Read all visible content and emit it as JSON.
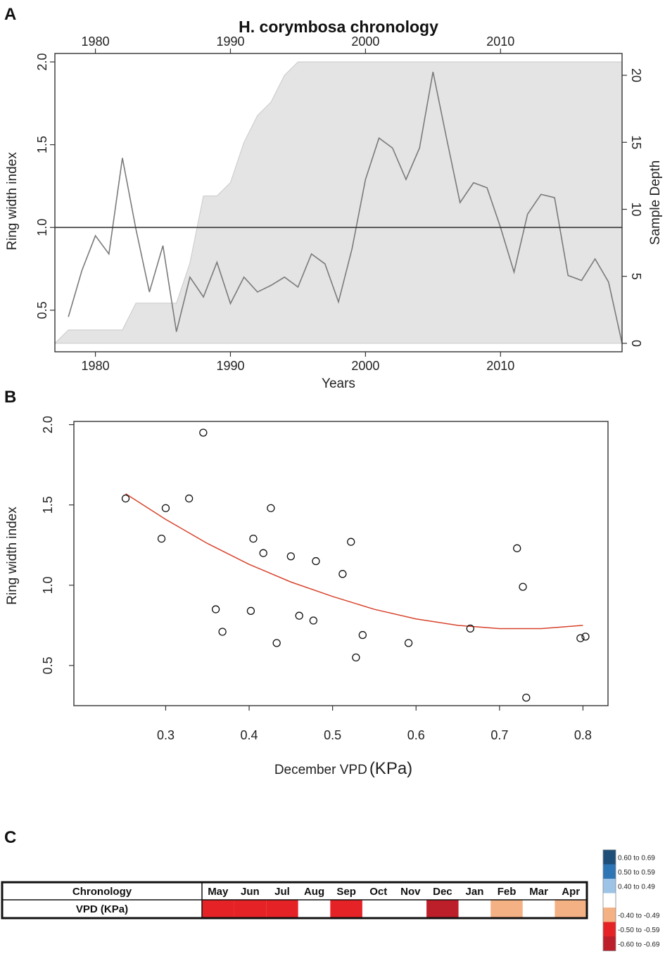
{
  "panels": {
    "a": "A",
    "b": "B",
    "c": "C"
  },
  "colors": {
    "deep_red": "#bd1f2a",
    "red": "#e52226",
    "salmon": "#f4b183",
    "light_blue": "#9dc3e6",
    "mid_blue": "#2e75b6",
    "dark_blue": "#1f4e79",
    "fit_line": "#d7432c",
    "shade": "#e4e4e4",
    "series": "#7a7a7a"
  },
  "chart_data": [
    {
      "type": "line",
      "title": "H. corymbosa chronology",
      "xlabel": "Years",
      "ylabel": "Ring width index",
      "y2label": "Sample Depth",
      "xlim": [
        1977,
        2019
      ],
      "ylim": [
        0.3,
        2.0
      ],
      "y2lim": [
        0,
        21
      ],
      "xticks": [
        1980,
        1990,
        2000,
        2010
      ],
      "yticks": [
        0.5,
        1.0,
        1.5,
        2.0
      ],
      "ytick_labels": [
        "0.5",
        "1.0",
        "1.5",
        "2.0"
      ],
      "y2ticks": [
        0,
        5,
        10,
        15,
        20
      ],
      "reference_line": 1.0,
      "series": [
        {
          "name": "Ring width index",
          "x": [
            1978,
            1979,
            1980,
            1981,
            1982,
            1983,
            1984,
            1985,
            1986,
            1987,
            1988,
            1989,
            1990,
            1991,
            1992,
            1993,
            1994,
            1995,
            1996,
            1997,
            1998,
            1999,
            2000,
            2001,
            2002,
            2003,
            2004,
            2005,
            2006,
            2007,
            2008,
            2009,
            2010,
            2011,
            2012,
            2013,
            2014,
            2015,
            2016,
            2017,
            2018,
            2019
          ],
          "values": [
            0.46,
            0.74,
            0.95,
            0.84,
            1.42,
            0.99,
            0.61,
            0.89,
            0.37,
            0.7,
            0.58,
            0.79,
            0.54,
            0.7,
            0.61,
            0.65,
            0.7,
            0.64,
            0.84,
            0.78,
            0.55,
            0.87,
            1.29,
            1.54,
            1.48,
            1.29,
            1.48,
            1.94,
            1.54,
            1.15,
            1.27,
            1.24,
            1.0,
            0.73,
            1.08,
            1.2,
            1.18,
            0.71,
            0.68,
            0.81,
            0.67,
            0.3
          ]
        },
        {
          "name": "Sample Depth",
          "x": [
            1977,
            1978,
            1979,
            1980,
            1981,
            1982,
            1983,
            1984,
            1985,
            1986,
            1987,
            1988,
            1989,
            1990,
            1991,
            1992,
            1993,
            1994,
            1995,
            1996,
            2019
          ],
          "values": [
            0,
            1,
            1,
            1,
            1,
            1,
            3,
            3,
            3,
            3,
            6,
            11,
            11,
            12,
            15,
            17,
            18,
            20,
            21,
            21,
            21
          ]
        }
      ]
    },
    {
      "type": "scatter",
      "xlabel": "December VPD",
      "xlabel_unit": "(KPa)",
      "ylabel": "Ring width index",
      "xlim": [
        0.19,
        0.83
      ],
      "ylim": [
        0.25,
        2.02
      ],
      "xticks": [
        0.3,
        0.4,
        0.5,
        0.6,
        0.7,
        0.8
      ],
      "xtick_labels": [
        "0.3",
        "0.4",
        "0.5",
        "0.6",
        "0.7",
        "0.8"
      ],
      "yticks": [
        0.5,
        1.0,
        1.5,
        2.0
      ],
      "ytick_labels": [
        "0.5",
        "1.0",
        "1.5",
        "2.0"
      ],
      "points": [
        [
          0.252,
          1.54
        ],
        [
          0.295,
          1.29
        ],
        [
          0.3,
          1.48
        ],
        [
          0.328,
          1.54
        ],
        [
          0.345,
          1.95
        ],
        [
          0.36,
          0.85
        ],
        [
          0.368,
          0.71
        ],
        [
          0.402,
          0.84
        ],
        [
          0.405,
          1.29
        ],
        [
          0.417,
          1.2
        ],
        [
          0.426,
          1.48
        ],
        [
          0.433,
          0.64
        ],
        [
          0.45,
          1.18
        ],
        [
          0.46,
          0.81
        ],
        [
          0.477,
          0.78
        ],
        [
          0.48,
          1.15
        ],
        [
          0.512,
          1.07
        ],
        [
          0.522,
          1.27
        ],
        [
          0.528,
          0.55
        ],
        [
          0.536,
          0.69
        ],
        [
          0.591,
          0.64
        ],
        [
          0.665,
          0.73
        ],
        [
          0.721,
          1.23
        ],
        [
          0.728,
          0.99
        ],
        [
          0.732,
          0.3
        ],
        [
          0.797,
          0.67
        ],
        [
          0.803,
          0.68
        ]
      ],
      "fit_curve": {
        "x": [
          0.252,
          0.3,
          0.35,
          0.4,
          0.45,
          0.5,
          0.55,
          0.6,
          0.65,
          0.7,
          0.75,
          0.8
        ],
        "values": [
          1.57,
          1.41,
          1.26,
          1.13,
          1.02,
          0.93,
          0.85,
          0.79,
          0.75,
          0.73,
          0.73,
          0.75
        ]
      }
    },
    {
      "type": "table",
      "header_label": "Chronology",
      "row_label": "VPD (KPa)",
      "months": [
        "May",
        "Jun",
        "Jul",
        "Aug",
        "Sep",
        "Oct",
        "Nov",
        "Dec",
        "Jan",
        "Feb",
        "Mar",
        "Apr"
      ],
      "cell_classes": [
        "-0.50 to -0.59",
        "-0.50 to -0.59",
        "-0.50 to -0.59",
        "none",
        "-0.50 to -0.59",
        "none",
        "none",
        "-0.60 to -0.69",
        "none",
        "-0.40 to -0.49",
        "none",
        "-0.40 to -0.49"
      ],
      "legend": [
        {
          "label": "0.60 to 0.69",
          "color": "#1f4e79"
        },
        {
          "label": "0.50 to 0.59",
          "color": "#2e75b6"
        },
        {
          "label": "0.40 to 0.49",
          "color": "#9dc3e6"
        },
        {
          "label": "",
          "color": "#ffffff"
        },
        {
          "label": "-0.40 to -0.49",
          "color": "#f4b183"
        },
        {
          "label": "-0.50 to -0.59",
          "color": "#e52226"
        },
        {
          "label": "-0.60 to -0.69",
          "color": "#bd1f2a"
        }
      ]
    }
  ]
}
